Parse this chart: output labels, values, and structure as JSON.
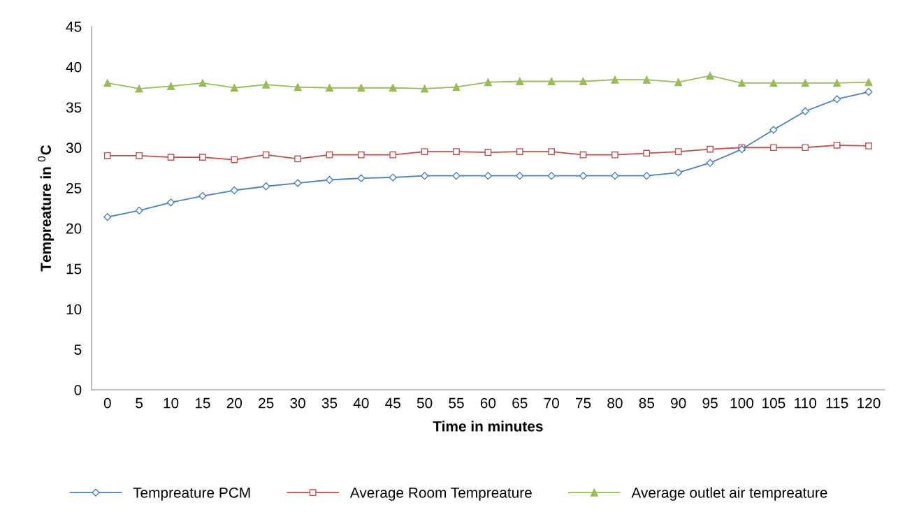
{
  "chart_data": {
    "type": "line",
    "xlabel": "Time in minutes",
    "ylabel": "Tempreature in $^{0}$C",
    "categories": [
      "0",
      "5",
      "10",
      "15",
      "20",
      "25",
      "30",
      "35",
      "40",
      "45",
      "50",
      "55",
      "60",
      "65",
      "70",
      "75",
      "80",
      "85",
      "90",
      "95",
      "100",
      "105",
      "110",
      "115",
      "120"
    ],
    "ylim": [
      0,
      45
    ],
    "yticks": [
      0,
      5,
      10,
      15,
      20,
      25,
      30,
      35,
      40,
      45
    ],
    "grid": false,
    "legend": "bottom",
    "series": [
      {
        "name": "Tempreature PCM",
        "color": "#4f81bd",
        "marker": "diamond",
        "values": [
          21.4,
          22.2,
          23.2,
          24.0,
          24.7,
          25.2,
          25.6,
          26.0,
          26.2,
          26.3,
          26.5,
          26.5,
          26.5,
          26.5,
          26.5,
          26.5,
          26.5,
          26.5,
          26.9,
          28.1,
          29.8,
          32.2,
          34.5,
          36.0,
          36.9
        ]
      },
      {
        "name": "Average Room Tempreature",
        "color": "#c0504d",
        "marker": "square",
        "values": [
          29.0,
          29.0,
          28.8,
          28.8,
          28.5,
          29.1,
          28.6,
          29.1,
          29.1,
          29.1,
          29.5,
          29.5,
          29.4,
          29.5,
          29.5,
          29.1,
          29.1,
          29.3,
          29.5,
          29.8,
          30.0,
          30.0,
          30.0,
          30.3,
          30.2
        ]
      },
      {
        "name": "Average outlet air tempreature",
        "color": "#9bbb59",
        "marker": "triangle",
        "values": [
          38.0,
          37.3,
          37.6,
          38.0,
          37.4,
          37.8,
          37.5,
          37.4,
          37.4,
          37.4,
          37.3,
          37.5,
          38.1,
          38.2,
          38.2,
          38.2,
          38.4,
          38.4,
          38.1,
          38.9,
          38.0,
          38.0,
          38.0,
          38.0,
          38.1
        ]
      }
    ]
  }
}
